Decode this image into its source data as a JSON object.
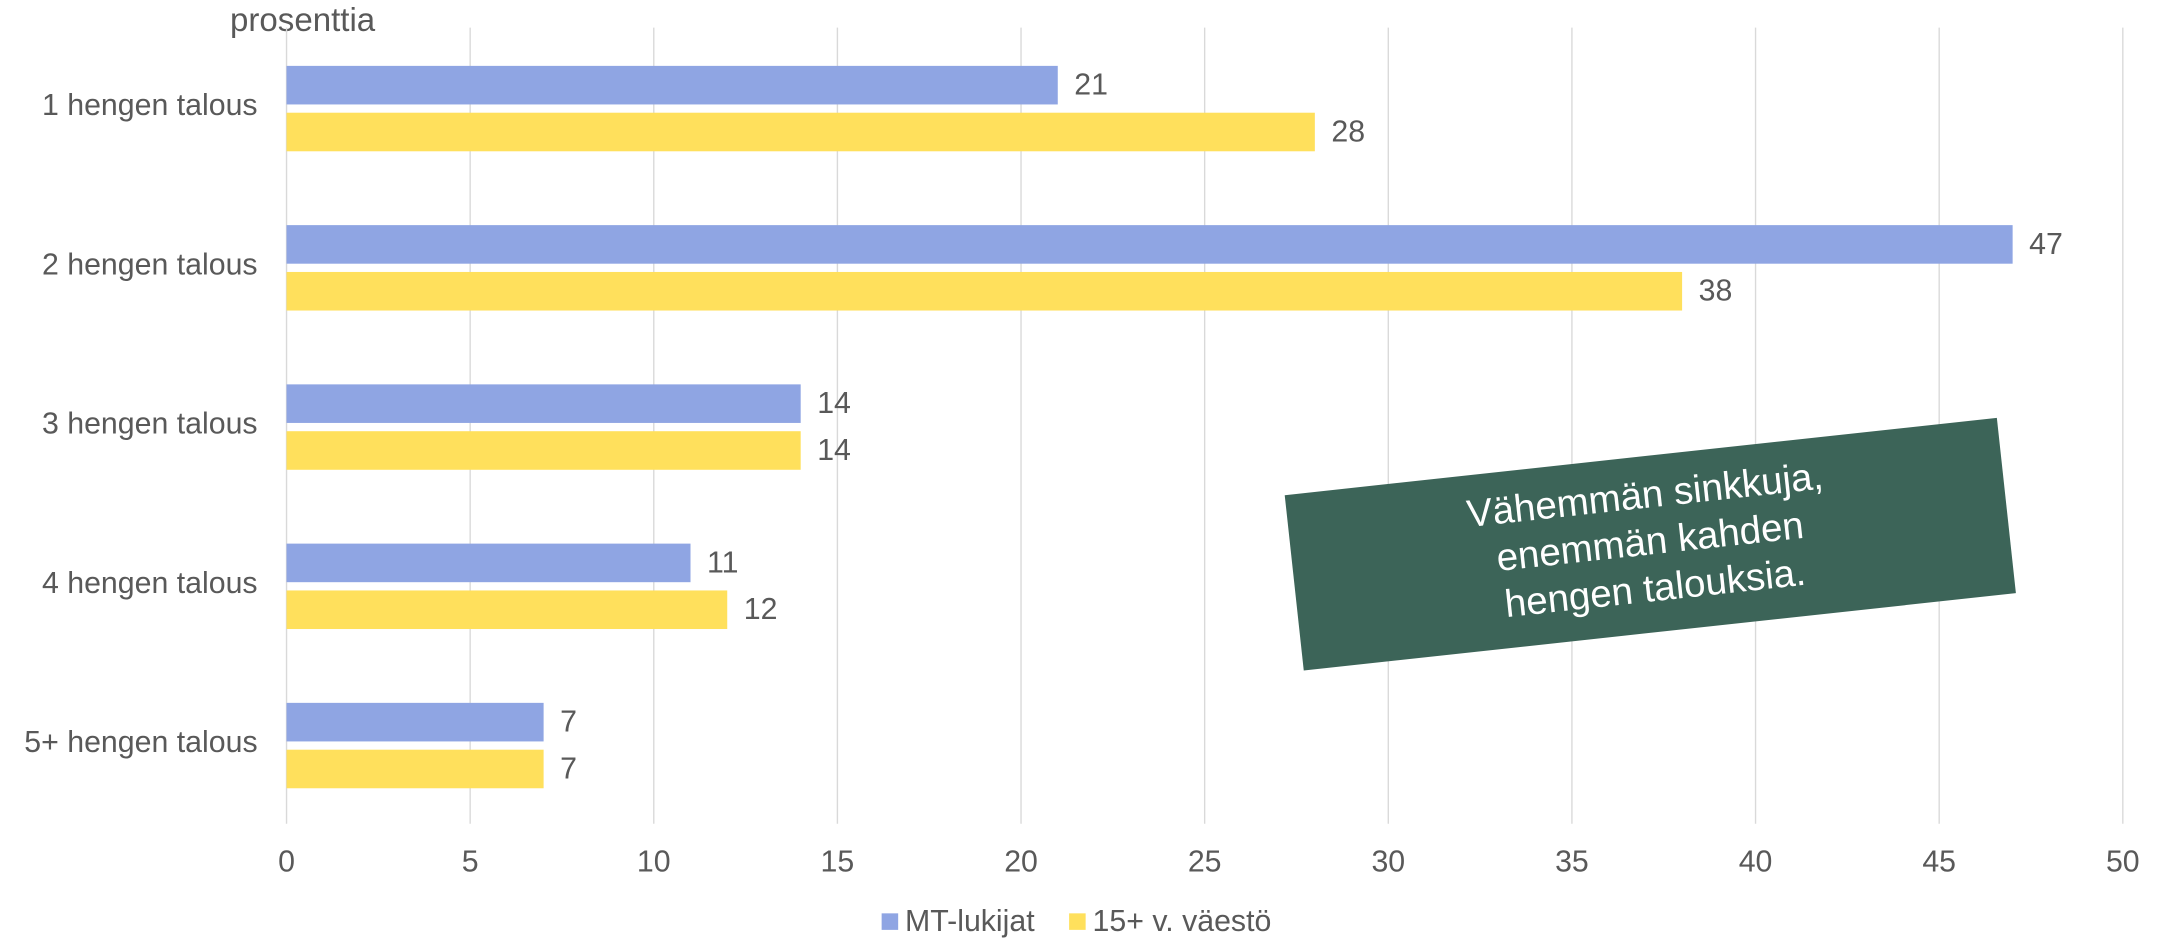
{
  "chart_data": {
    "type": "bar",
    "orientation": "horizontal",
    "unit_label": "prosenttia",
    "categories": [
      "1 hengen talous",
      "2 hengen talous",
      "3 hengen talous",
      "4 hengen talous",
      "5+ hengen talous"
    ],
    "series": [
      {
        "name": "MT-lukijat",
        "color": "#8fa5e3",
        "values": [
          21,
          47,
          14,
          11,
          7
        ]
      },
      {
        "name": "15+ v. väestö",
        "color": "#ffe05c",
        "values": [
          28,
          38,
          14,
          12,
          7
        ]
      }
    ],
    "xlim": [
      0,
      50
    ],
    "xticks": [
      0,
      5,
      10,
      15,
      20,
      25,
      30,
      35,
      40,
      45,
      50
    ],
    "grid": true,
    "legend": "bottom",
    "annotation": {
      "lines": [
        "Vähemmän sinkkuja,",
        "enemmän kahden",
        "hengen talouksia."
      ],
      "color": "#3c6458"
    }
  }
}
